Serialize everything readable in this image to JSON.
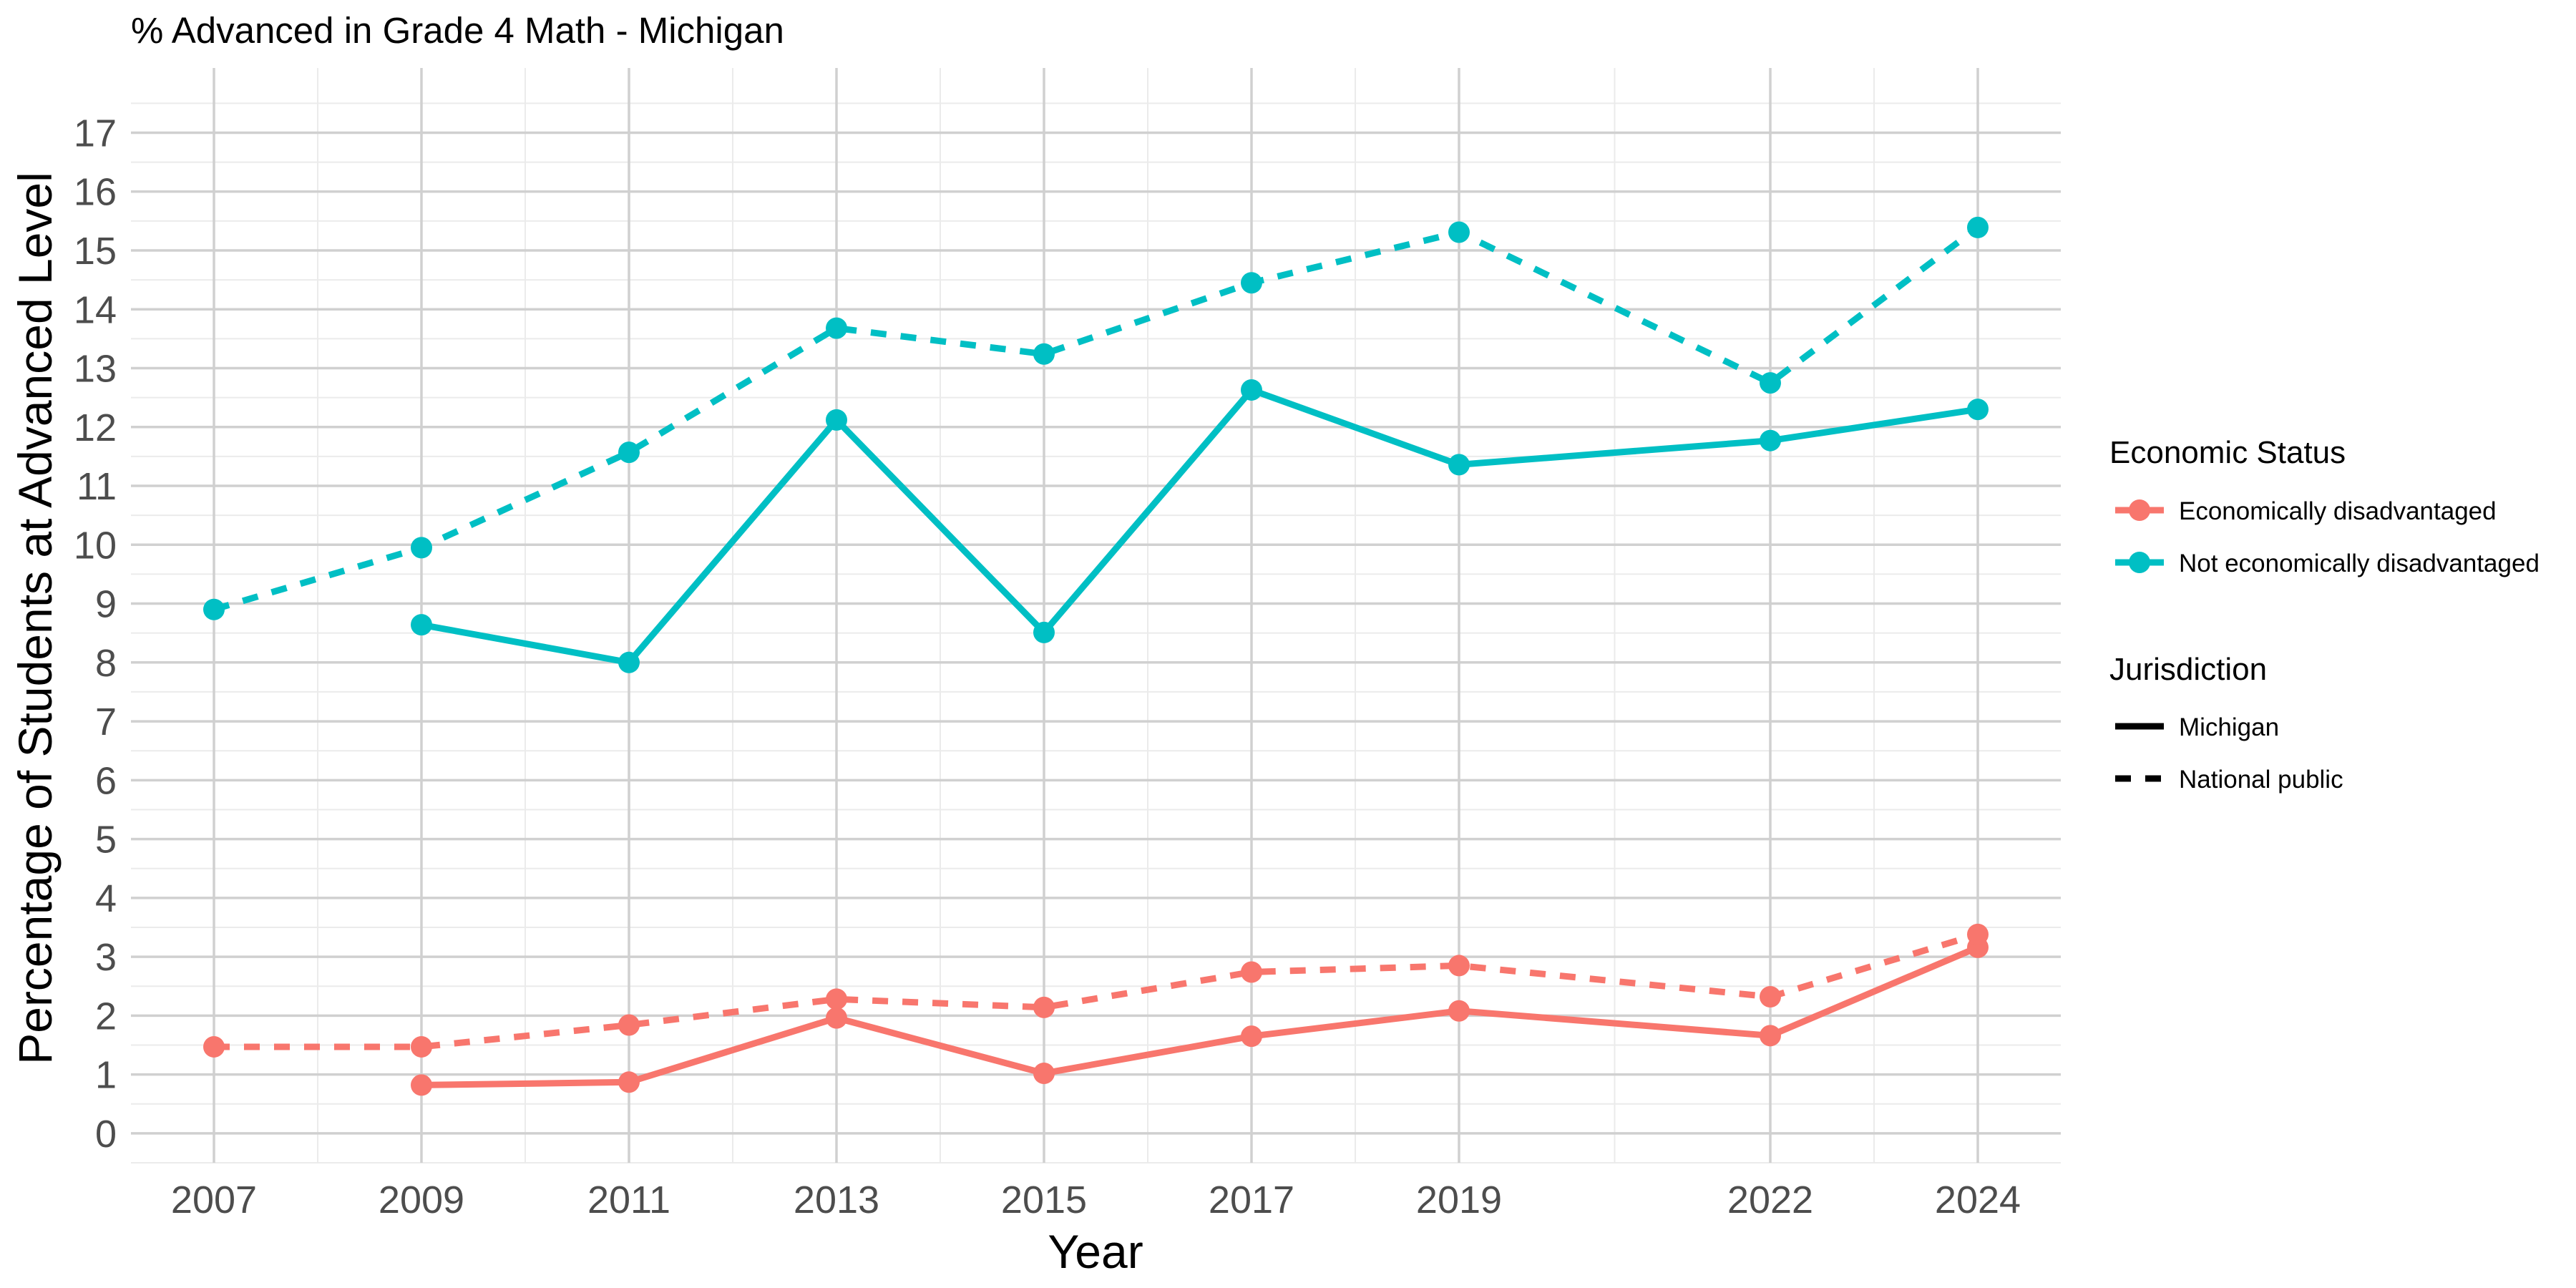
{
  "chart_data": {
    "type": "line",
    "title": "% Advanced in Grade 4 Math - Michigan",
    "xlabel": "Year",
    "ylabel": "Percentage of Students at Advanced Level",
    "x_ticks": [
      2007,
      2009,
      2011,
      2013,
      2015,
      2017,
      2019,
      2022,
      2024
    ],
    "y_ticks": [
      0,
      1,
      2,
      3,
      4,
      5,
      6,
      7,
      8,
      9,
      10,
      11,
      12,
      13,
      14,
      15,
      16,
      17
    ],
    "xlim": [
      2006.2,
      2024.8
    ],
    "ylim": [
      -0.5,
      18.1
    ],
    "grid": true,
    "legend_position": "right",
    "legends": [
      {
        "title": "Economic Status",
        "entries": [
          {
            "label": "Economically disadvantaged",
            "color": "#F8766D"
          },
          {
            "label": "Not economically disadvantaged",
            "color": "#00BFC4"
          }
        ]
      },
      {
        "title": "Jurisdiction",
        "entries": [
          {
            "label": "Michigan",
            "linetype": "solid"
          },
          {
            "label": "National public",
            "linetype": "dashed"
          }
        ]
      }
    ],
    "series": [
      {
        "economic_status": "Economically disadvantaged",
        "jurisdiction": "Michigan",
        "color": "#F8766D",
        "linetype": "solid",
        "x": [
          2009,
          2011,
          2013,
          2015,
          2017,
          2019,
          2022,
          2024
        ],
        "y": [
          0.82,
          0.87,
          1.96,
          1.02,
          1.65,
          2.08,
          1.66,
          3.16
        ]
      },
      {
        "economic_status": "Economically disadvantaged",
        "jurisdiction": "National public",
        "color": "#F8766D",
        "linetype": "dashed",
        "x": [
          2007,
          2009,
          2011,
          2013,
          2015,
          2017,
          2019,
          2022,
          2024
        ],
        "y": [
          1.47,
          1.47,
          1.84,
          2.28,
          2.14,
          2.74,
          2.85,
          2.32,
          3.38
        ]
      },
      {
        "economic_status": "Not economically disadvantaged",
        "jurisdiction": "Michigan",
        "color": "#00BFC4",
        "linetype": "solid",
        "x": [
          2009,
          2011,
          2013,
          2015,
          2017,
          2019,
          2022,
          2024
        ],
        "y": [
          8.64,
          8.0,
          12.12,
          8.51,
          12.63,
          11.36,
          11.77,
          12.3
        ]
      },
      {
        "economic_status": "Not economically disadvantaged",
        "jurisdiction": "National public",
        "color": "#00BFC4",
        "linetype": "dashed",
        "x": [
          2007,
          2009,
          2011,
          2013,
          2015,
          2017,
          2019,
          2022,
          2024
        ],
        "y": [
          8.9,
          9.95,
          11.57,
          13.68,
          13.24,
          14.45,
          15.31,
          12.75,
          15.39
        ]
      }
    ]
  }
}
